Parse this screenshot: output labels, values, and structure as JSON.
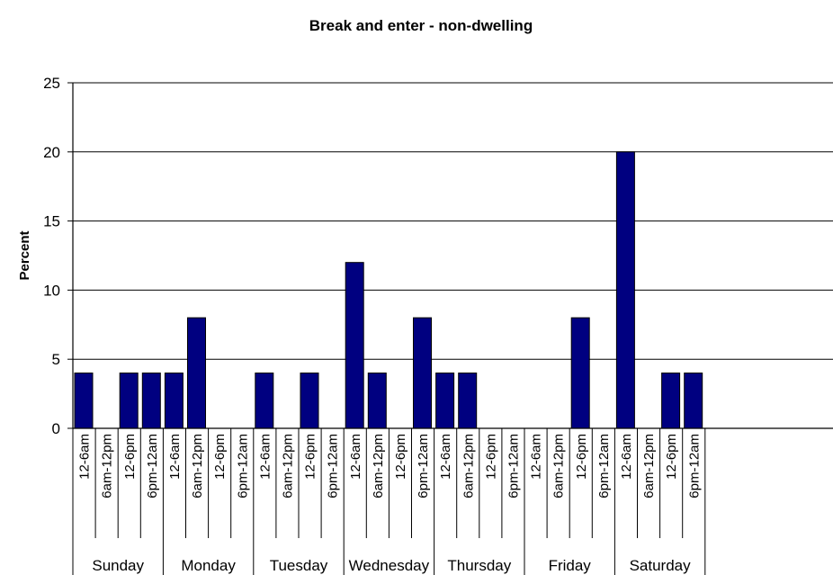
{
  "chart_data": {
    "type": "bar",
    "title": "Break and enter - non-dwelling",
    "xlabel": "",
    "ylabel": "Percent",
    "ylim": [
      0,
      25
    ],
    "yticks": [
      "0",
      "5",
      "10",
      "15",
      "20",
      "25"
    ],
    "grid": true,
    "legend": "none",
    "bar_color": "#000080",
    "time_slots": [
      "12-6am",
      "6am-12pm",
      "12-6pm",
      "6pm-12am"
    ],
    "days": [
      "Sunday",
      "Monday",
      "Tuesday",
      "Wednesday",
      "Thursday",
      "Friday",
      "Saturday"
    ],
    "values": [
      [
        4,
        0,
        4,
        4
      ],
      [
        4,
        8,
        0,
        0
      ],
      [
        4,
        0,
        4,
        0
      ],
      [
        12,
        4,
        0,
        8
      ],
      [
        4,
        4,
        0,
        0
      ],
      [
        0,
        0,
        8,
        0
      ],
      [
        20,
        0,
        4,
        4
      ]
    ]
  }
}
